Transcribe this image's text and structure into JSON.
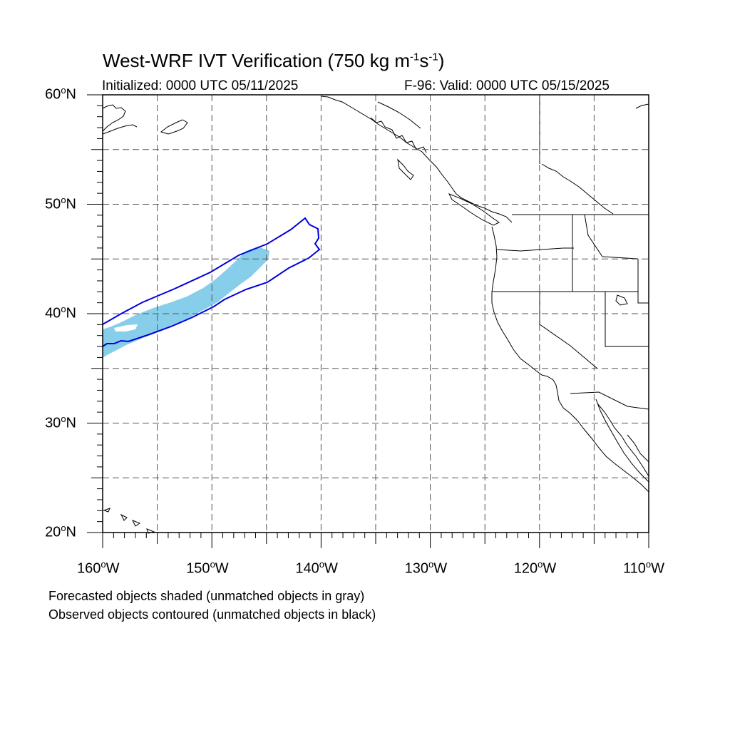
{
  "title": {
    "main": "West-WRF IVT Verification (750 kg m",
    "sup1": "-1",
    "mid": "s",
    "sup2": "-1",
    "end": ")"
  },
  "initialized": "Initialized: 0000 UTC 05/11/2025",
  "valid": "F-96: Valid: 0000 UTC 05/15/2025",
  "legend_notes": [
    "Forecasted objects shaded (unmatched objects in gray)",
    "Observed objects contoured (unmatched objects in black)"
  ],
  "map": {
    "projection": "cylindrical equidistant",
    "lon_range": [
      -160,
      -110
    ],
    "lat_range": [
      20,
      60
    ],
    "lat_labels": [
      {
        "lat": 60,
        "num": "60",
        "unit": "o",
        "hemi": "N"
      },
      {
        "lat": 50,
        "num": "50",
        "unit": "o",
        "hemi": "N"
      },
      {
        "lat": 40,
        "num": "40",
        "unit": "o",
        "hemi": "N"
      },
      {
        "lat": 30,
        "num": "30",
        "unit": "o",
        "hemi": "N"
      },
      {
        "lat": 20,
        "num": "20",
        "unit": "o",
        "hemi": "N"
      }
    ],
    "lon_labels": [
      {
        "lon": -160,
        "num": "160",
        "unit": "o",
        "hemi": "W"
      },
      {
        "lon": -150,
        "num": "150",
        "unit": "o",
        "hemi": "W"
      },
      {
        "lon": -140,
        "num": "140",
        "unit": "o",
        "hemi": "W"
      },
      {
        "lon": -130,
        "num": "130",
        "unit": "o",
        "hemi": "W"
      },
      {
        "lon": -120,
        "num": "120",
        "unit": "o",
        "hemi": "W"
      },
      {
        "lon": -110,
        "num": "110",
        "unit": "o",
        "hemi": "W"
      }
    ],
    "gridlines": {
      "style": "dashed",
      "lon_step": 5,
      "lat_step": 5
    },
    "forecast_object_color": "#87ceeb",
    "observed_contour_color": "#0000dd"
  }
}
